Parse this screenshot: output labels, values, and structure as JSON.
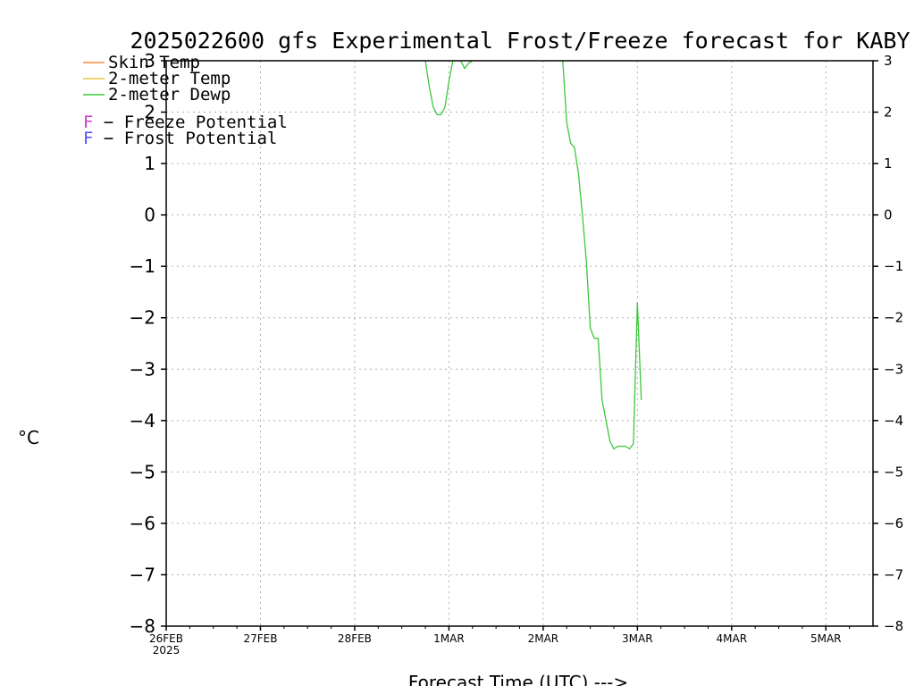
{
  "chart_data": {
    "type": "line",
    "title": "2025022600 gfs Experimental Frost/Freeze forecast for KABY",
    "xlabel": "Forecast Time (UTC) --->",
    "ylabel": "°C",
    "ylim": [
      -8,
      3
    ],
    "xlim": [
      "2025-02-26T00",
      "2025-03-05T12"
    ],
    "grid": true,
    "legend_placement": "top-left",
    "x_ticks": [
      "26FEB",
      "27FEB",
      "28FEB",
      "1MAR",
      "2MAR",
      "3MAR",
      "4MAR",
      "5MAR"
    ],
    "x_tick_year": "2025",
    "y_ticks": [
      3,
      2,
      1,
      0,
      -1,
      -2,
      -3,
      -4,
      -5,
      -6,
      -7,
      -8
    ],
    "y_tick_labels_left": [
      "3",
      "2",
      "1",
      "0",
      "−1",
      "−2",
      "−3",
      "−4",
      "−5",
      "−6",
      "−7",
      "−8"
    ],
    "y_tick_labels_right": [
      "3",
      "2",
      "1",
      "0",
      "−1",
      "−2",
      "−3",
      "−4",
      "−5",
      "−6",
      "−7",
      "−8"
    ],
    "series": [
      {
        "name": "Skin Temp",
        "color": "#ff8c3c",
        "points": []
      },
      {
        "name": "2-meter Temp",
        "color": "#e6c83c",
        "points": []
      },
      {
        "name": "2-meter Dewp",
        "color": "#3cc83c",
        "segments": [
          [
            [
              "2025-02-28T18",
              3.0
            ],
            [
              "2025-02-28T19",
              2.5
            ],
            [
              "2025-02-28T20",
              2.1
            ],
            [
              "2025-02-28T21",
              1.95
            ],
            [
              "2025-02-28T22",
              1.95
            ],
            [
              "2025-02-28T23",
              2.1
            ],
            [
              "2025-03-01T00",
              2.6
            ],
            [
              "2025-03-01T01",
              3.0
            ]
          ],
          [
            [
              "2025-03-01T03",
              3.0
            ],
            [
              "2025-03-01T04",
              2.85
            ],
            [
              "2025-03-01T05",
              2.95
            ],
            [
              "2025-03-01T06",
              3.0
            ]
          ],
          [
            [
              "2025-03-02T05",
              3.0
            ],
            [
              "2025-03-02T06",
              1.8
            ],
            [
              "2025-03-02T07",
              1.4
            ],
            [
              "2025-03-02T08",
              1.3
            ],
            [
              "2025-03-02T09",
              0.8
            ],
            [
              "2025-03-02T10",
              0.0
            ],
            [
              "2025-03-02T11",
              -0.9
            ],
            [
              "2025-03-02T12",
              -2.2
            ],
            [
              "2025-03-02T13",
              -2.4
            ],
            [
              "2025-03-02T14",
              -2.4
            ],
            [
              "2025-03-02T15",
              -3.6
            ],
            [
              "2025-03-02T17",
              -4.4
            ],
            [
              "2025-03-02T18",
              -4.55
            ],
            [
              "2025-03-02T19",
              -4.5
            ],
            [
              "2025-03-02T21",
              -4.5
            ],
            [
              "2025-03-02T22",
              -4.55
            ],
            [
              "2025-03-02T23",
              -4.45
            ],
            [
              "2025-03-03T00",
              -1.7
            ],
            [
              "2025-03-03T01",
              -3.6
            ]
          ]
        ]
      }
    ],
    "legend_extra": [
      {
        "symbol": "F",
        "text": " − Freeze Potential",
        "color": "#c83cc8"
      },
      {
        "symbol": "F",
        "text": " − Frost Potential",
        "color": "#5050ff"
      }
    ]
  }
}
